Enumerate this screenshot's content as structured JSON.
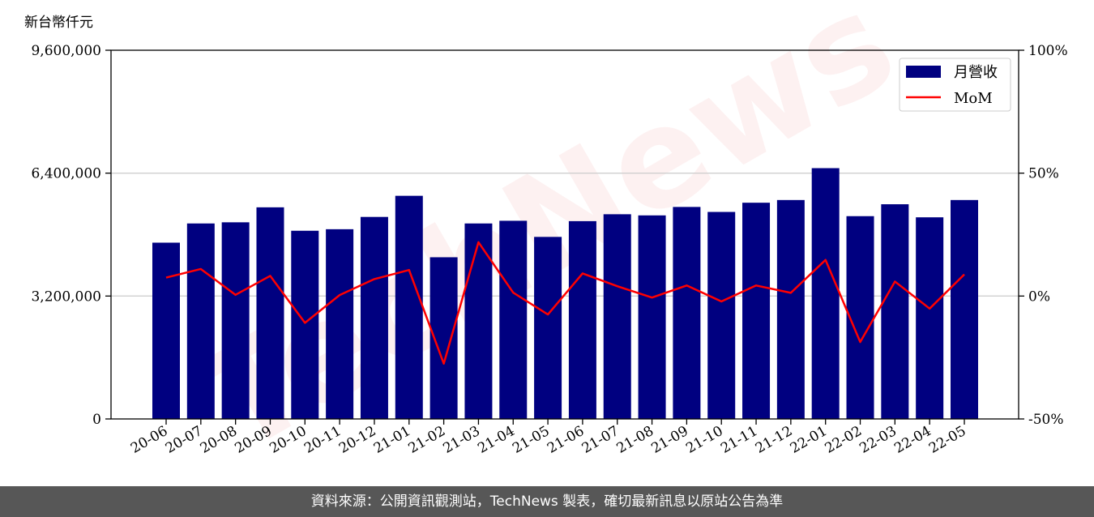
{
  "chart_data": {
    "type": "bar",
    "categories": [
      "20-06",
      "20-07",
      "20-08",
      "20-09",
      "20-10",
      "20-11",
      "20-12",
      "21-01",
      "21-02",
      "21-03",
      "21-04",
      "21-05",
      "21-06",
      "21-07",
      "21-08",
      "21-09",
      "21-10",
      "21-11",
      "21-12",
      "22-01",
      "22-02",
      "22-03",
      "22-04",
      "22-05"
    ],
    "series": [
      {
        "name": "月營收",
        "type": "bar",
        "axis": "left",
        "color": "#000080",
        "values": [
          4590000,
          5090000,
          5120000,
          5510000,
          4900000,
          4940000,
          5260000,
          5810000,
          4210000,
          5090000,
          5160000,
          4740000,
          5150000,
          5330000,
          5300000,
          5520000,
          5390000,
          5630000,
          5700000,
          6530000,
          5280000,
          5590000,
          5250000,
          5700000
        ]
      },
      {
        "name": "MoM",
        "type": "line",
        "axis": "right",
        "color": "#ff0000",
        "values": [
          7.5,
          11.0,
          0.5,
          8.2,
          -10.9,
          0.4,
          6.9,
          10.6,
          -27.5,
          21.9,
          1.4,
          -7.5,
          9.2,
          4.0,
          -0.6,
          4.3,
          -2.2,
          4.3,
          1.3,
          14.7,
          -18.7,
          5.9,
          -5.1,
          8.8
        ]
      }
    ],
    "ylabel_left_unit": "新台幣仟元",
    "ylim_left": [
      0,
      9600000
    ],
    "yticks_left": [
      "0",
      "3,200,000",
      "6,400,000",
      "9,600,000"
    ],
    "yticks_left_values": [
      0,
      3200000,
      6400000,
      9600000
    ],
    "ylim_right": [
      -50,
      100
    ],
    "yticks_right": [
      "-50%",
      "0%",
      "50%",
      "100%"
    ],
    "yticks_right_values": [
      -50,
      0,
      50,
      100
    ],
    "grid": "horizontal",
    "legend_position": "top-right"
  },
  "watermark": "TechNews",
  "footer": {
    "source_text": "資料來源：公開資訊觀測站，TechNews 製表，確切最新訊息以原站公告為準"
  },
  "colors": {
    "bar": "#000080",
    "line": "#ff0000",
    "footer_bg": "#575757",
    "grid": "#cfcfcf"
  }
}
